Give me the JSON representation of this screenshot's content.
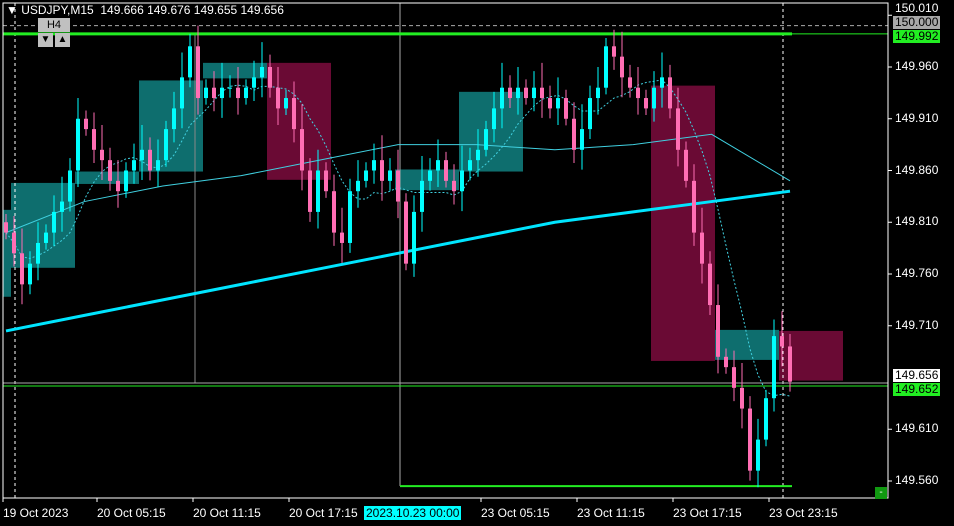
{
  "header": {
    "symbol": "USDJPY,M15",
    "ohlc": "149.666 149.676 149.655 149.656",
    "timeframe_button": "H4",
    "down_arrow": "▼",
    "up_arrow": "▲"
  },
  "colors": {
    "bull": "#00ffff",
    "bear": "#ff6eb4",
    "ma_slow": "#00e5ff",
    "ma_mid": "#40d0e0",
    "teal_box": "#0e6e6e",
    "maroon_box": "#6a0a34",
    "level_line": "#22ee22",
    "background": "#000000"
  },
  "price_axis": {
    "ticks": [
      "150.010",
      "149.960",
      "149.910",
      "149.860",
      "149.810",
      "149.760",
      "149.710",
      "149.610",
      "149.560"
    ],
    "tick_values": [
      150.01,
      149.96,
      149.91,
      149.86,
      149.81,
      149.76,
      149.71,
      149.61,
      149.56
    ],
    "label_150": "150.000",
    "label_level": "149.992",
    "label_bid": "149.656",
    "label_ask": "149.652"
  },
  "time_axis": {
    "labels": [
      "19 Oct 2023",
      "20 Oct 05:15",
      "20 Oct 11:15",
      "20 Oct 17:15",
      "23 Oct 05:15",
      "23 Oct 11:15",
      "23 Oct 17:15",
      "23 Oct 23:15"
    ],
    "crosshair_label": "2023.10.23 00:00"
  },
  "corner_button": "-",
  "chart_data": {
    "type": "candlestick",
    "symbol": "USDJPY",
    "timeframe": "M15",
    "ylim": [
      149.545,
      150.02
    ],
    "closes": [
      149.8,
      149.78,
      149.75,
      149.77,
      149.79,
      149.8,
      149.82,
      149.83,
      149.86,
      149.91,
      149.9,
      149.88,
      149.87,
      149.85,
      149.84,
      149.86,
      149.87,
      149.88,
      149.86,
      149.87,
      149.9,
      149.92,
      149.95,
      149.98,
      149.93,
      149.94,
      149.93,
      149.94,
      149.94,
      149.93,
      149.94,
      149.95,
      149.96,
      149.94,
      149.92,
      149.93,
      149.9,
      149.86,
      149.82,
      149.86,
      149.84,
      149.8,
      149.79,
      149.84,
      149.85,
      149.86,
      149.87,
      149.85,
      149.86,
      149.83,
      149.77,
      149.82,
      149.85,
      149.86,
      149.87,
      149.85,
      149.84,
      149.86,
      149.87,
      149.88,
      149.9,
      149.92,
      149.94,
      149.93,
      149.94,
      149.93,
      149.94,
      149.93,
      149.92,
      149.93,
      149.91,
      149.88,
      149.9,
      149.93,
      149.94,
      149.98,
      149.97,
      149.95,
      149.94,
      149.93,
      149.92,
      149.94,
      149.95,
      149.92,
      149.88,
      149.85,
      149.8,
      149.77,
      149.73,
      149.68,
      149.67,
      149.65,
      149.63,
      149.57,
      149.6,
      149.64,
      149.7,
      149.69,
      149.656
    ],
    "ma_slow": [
      149.705,
      149.72,
      149.735,
      149.75,
      149.765,
      149.78,
      149.795,
      149.81,
      149.82,
      149.83,
      149.84
    ],
    "ma_mid": [
      149.8,
      149.83,
      149.845,
      149.855,
      149.87,
      149.885,
      149.885,
      149.88,
      149.885,
      149.895,
      149.85
    ],
    "h4_boxes": [
      {
        "from": 0,
        "to": 1,
        "high": 149.822,
        "low": 149.738,
        "dir": "bull"
      },
      {
        "from": 1,
        "to": 9,
        "high": 149.848,
        "low": 149.766,
        "dir": "bull"
      },
      {
        "from": 9,
        "to": 17,
        "high": 149.859,
        "low": 149.847,
        "dir": "bull"
      },
      {
        "from": 17,
        "to": 25,
        "high": 149.947,
        "low": 149.859,
        "dir": "bull"
      },
      {
        "from": 25,
        "to": 33,
        "high": 149.964,
        "low": 149.949,
        "dir": "bull"
      },
      {
        "from": 33,
        "to": 41,
        "high": 149.964,
        "low": 149.851,
        "dir": "bear"
      },
      {
        "from": 49,
        "to": 57,
        "high": 149.861,
        "low": 149.841,
        "dir": "bull"
      },
      {
        "from": 57,
        "to": 65,
        "high": 149.936,
        "low": 149.859,
        "dir": "bull"
      },
      {
        "from": 81,
        "to": 89,
        "high": 149.942,
        "low": 149.676,
        "dir": "bear"
      },
      {
        "from": 89,
        "to": 97,
        "high": 149.706,
        "low": 149.677,
        "dir": "bull"
      },
      {
        "from": 97,
        "to": 105,
        "high": 149.705,
        "low": 149.657,
        "dir": "bear"
      }
    ],
    "levels": [
      149.992,
      149.555
    ],
    "bid": 149.656,
    "ask": 149.652
  }
}
